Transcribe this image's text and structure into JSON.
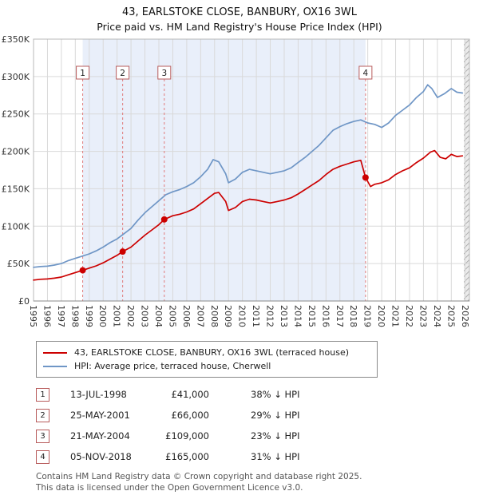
{
  "colors": {
    "property": "#cc0000",
    "hpi": "#6f96c6",
    "band": "#e9effa",
    "grid": "#d9d9d9",
    "dashed": "#e07a7a",
    "marker_box_border": "#b85c5c",
    "axis": "#888888",
    "plot_border": "#b8b8b8"
  },
  "chart_data": {
    "type": "line",
    "title": "43, EARLSTOKE CLOSE, BANBURY, OX16 3WL",
    "subtitle": "Price paid vs. HM Land Registry's House Price Index (HPI)",
    "xlabel": "",
    "ylabel": "",
    "x_range": [
      1995,
      2026.3
    ],
    "y_range": [
      0,
      350000
    ],
    "grid": true,
    "legend_position": "bottom",
    "y_ticks": [
      {
        "v": 0,
        "label": "£0"
      },
      {
        "v": 50000,
        "label": "£50K"
      },
      {
        "v": 100000,
        "label": "£100K"
      },
      {
        "v": 150000,
        "label": "£150K"
      },
      {
        "v": 200000,
        "label": "£200K"
      },
      {
        "v": 250000,
        "label": "£250K"
      },
      {
        "v": 300000,
        "label": "£300K"
      },
      {
        "v": 350000,
        "label": "£350K"
      }
    ],
    "x_ticks": [
      1995,
      1996,
      1997,
      1998,
      1999,
      2000,
      2001,
      2002,
      2003,
      2004,
      2005,
      2006,
      2007,
      2008,
      2009,
      2010,
      2011,
      2012,
      2013,
      2014,
      2015,
      2016,
      2017,
      2018,
      2019,
      2020,
      2021,
      2022,
      2023,
      2024,
      2025,
      2026
    ],
    "shaded_band": [
      1998.53,
      2018.84
    ],
    "future_band": [
      2025.9,
      2026.3
    ],
    "sales": [
      {
        "n": "1",
        "x": 1998.53,
        "price": 41000
      },
      {
        "n": "2",
        "x": 2001.4,
        "price": 66000
      },
      {
        "n": "3",
        "x": 2004.39,
        "price": 109000
      },
      {
        "n": "4",
        "x": 2018.84,
        "price": 165000
      }
    ],
    "series": [
      {
        "name": "43, EARLSTOKE CLOSE, BANBURY, OX16 3WL (terraced house)",
        "color": "#cc0000",
        "points": [
          [
            1995,
            28000
          ],
          [
            1995.5,
            29000
          ],
          [
            1996,
            29500
          ],
          [
            1996.5,
            30500
          ],
          [
            1997,
            32000
          ],
          [
            1997.5,
            35000
          ],
          [
            1998,
            38000
          ],
          [
            1998.53,
            41000
          ],
          [
            1999,
            44000
          ],
          [
            1999.5,
            47000
          ],
          [
            2000,
            51000
          ],
          [
            2000.5,
            56000
          ],
          [
            2001,
            61000
          ],
          [
            2001.4,
            66000
          ],
          [
            2002,
            72000
          ],
          [
            2002.5,
            80000
          ],
          [
            2003,
            88000
          ],
          [
            2003.5,
            95000
          ],
          [
            2004,
            102000
          ],
          [
            2004.39,
            109000
          ],
          [
            2005,
            114000
          ],
          [
            2005.5,
            116000
          ],
          [
            2006,
            119000
          ],
          [
            2006.5,
            123000
          ],
          [
            2007,
            130000
          ],
          [
            2007.5,
            137000
          ],
          [
            2008,
            144000
          ],
          [
            2008.3,
            145000
          ],
          [
            2008.8,
            133000
          ],
          [
            2009,
            121000
          ],
          [
            2009.5,
            125000
          ],
          [
            2010,
            133000
          ],
          [
            2010.5,
            136000
          ],
          [
            2011,
            135000
          ],
          [
            2011.5,
            133000
          ],
          [
            2012,
            131000
          ],
          [
            2012.5,
            133000
          ],
          [
            2013,
            135000
          ],
          [
            2013.5,
            138000
          ],
          [
            2014,
            143000
          ],
          [
            2014.5,
            149000
          ],
          [
            2015,
            155000
          ],
          [
            2015.5,
            161000
          ],
          [
            2016,
            169000
          ],
          [
            2016.5,
            176000
          ],
          [
            2017,
            180000
          ],
          [
            2017.5,
            183000
          ],
          [
            2018,
            186000
          ],
          [
            2018.5,
            188000
          ],
          [
            2018.84,
            165000
          ],
          [
            2019.2,
            153000
          ],
          [
            2019.5,
            156000
          ],
          [
            2020,
            158000
          ],
          [
            2020.5,
            162000
          ],
          [
            2021,
            169000
          ],
          [
            2021.5,
            174000
          ],
          [
            2022,
            178000
          ],
          [
            2022.5,
            185000
          ],
          [
            2023,
            191000
          ],
          [
            2023.5,
            199000
          ],
          [
            2023.8,
            201000
          ],
          [
            2024.2,
            192000
          ],
          [
            2024.6,
            190000
          ],
          [
            2025,
            196000
          ],
          [
            2025.4,
            193000
          ],
          [
            2025.8,
            194000
          ]
        ]
      },
      {
        "name": "HPI: Average price, terraced house, Cherwell",
        "color": "#6f96c6",
        "points": [
          [
            1995,
            45000
          ],
          [
            1995.5,
            46000
          ],
          [
            1996,
            46500
          ],
          [
            1996.5,
            48000
          ],
          [
            1997,
            50000
          ],
          [
            1997.5,
            54000
          ],
          [
            1998,
            57000
          ],
          [
            1998.5,
            60000
          ],
          [
            1999,
            63000
          ],
          [
            1999.5,
            67000
          ],
          [
            2000,
            72000
          ],
          [
            2000.5,
            78000
          ],
          [
            2001,
            83000
          ],
          [
            2001.5,
            90000
          ],
          [
            2002,
            97000
          ],
          [
            2002.5,
            108000
          ],
          [
            2003,
            118000
          ],
          [
            2003.5,
            126000
          ],
          [
            2004,
            134000
          ],
          [
            2004.5,
            142000
          ],
          [
            2005,
            146000
          ],
          [
            2005.5,
            149000
          ],
          [
            2006,
            153000
          ],
          [
            2006.5,
            158000
          ],
          [
            2007,
            166000
          ],
          [
            2007.5,
            176000
          ],
          [
            2007.9,
            189000
          ],
          [
            2008.3,
            186000
          ],
          [
            2008.8,
            170000
          ],
          [
            2009,
            158000
          ],
          [
            2009.5,
            163000
          ],
          [
            2010,
            172000
          ],
          [
            2010.5,
            176000
          ],
          [
            2011,
            174000
          ],
          [
            2011.5,
            172000
          ],
          [
            2012,
            170000
          ],
          [
            2012.5,
            172000
          ],
          [
            2013,
            174000
          ],
          [
            2013.5,
            178000
          ],
          [
            2014,
            185000
          ],
          [
            2014.5,
            192000
          ],
          [
            2015,
            200000
          ],
          [
            2015.5,
            208000
          ],
          [
            2016,
            218000
          ],
          [
            2016.5,
            228000
          ],
          [
            2017,
            233000
          ],
          [
            2017.5,
            237000
          ],
          [
            2018,
            240000
          ],
          [
            2018.5,
            242000
          ],
          [
            2019,
            238000
          ],
          [
            2019.5,
            236000
          ],
          [
            2020,
            232000
          ],
          [
            2020.5,
            238000
          ],
          [
            2021,
            248000
          ],
          [
            2021.5,
            255000
          ],
          [
            2022,
            262000
          ],
          [
            2022.5,
            272000
          ],
          [
            2023,
            280000
          ],
          [
            2023.3,
            289000
          ],
          [
            2023.6,
            284000
          ],
          [
            2024,
            272000
          ],
          [
            2024.5,
            277000
          ],
          [
            2025,
            284000
          ],
          [
            2025.4,
            279000
          ],
          [
            2025.8,
            278000
          ]
        ]
      }
    ]
  },
  "transactions": [
    {
      "num": "1",
      "date": "13-JUL-1998",
      "price": "£41,000",
      "hpi_delta": "38% ↓ HPI"
    },
    {
      "num": "2",
      "date": "25-MAY-2001",
      "price": "£66,000",
      "hpi_delta": "29% ↓ HPI"
    },
    {
      "num": "3",
      "date": "21-MAY-2004",
      "price": "£109,000",
      "hpi_delta": "23% ↓ HPI"
    },
    {
      "num": "4",
      "date": "05-NOV-2018",
      "price": "£165,000",
      "hpi_delta": "31% ↓ HPI"
    }
  ],
  "footer": {
    "line1": "Contains HM Land Registry data © Crown copyright and database right 2025.",
    "line2": "This data is licensed under the Open Government Licence v3.0."
  }
}
